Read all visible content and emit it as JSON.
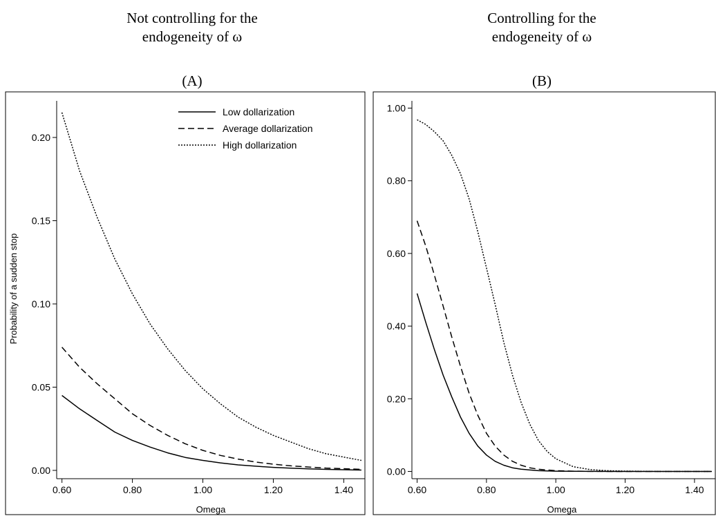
{
  "chart_data": [
    {
      "type": "line",
      "heading": [
        "Not controlling for the",
        "endogeneity of ω"
      ],
      "panel_label": "(A)",
      "xlabel": "Omega",
      "ylabel": "Probability of a sudden stop",
      "xlim": [
        0.585,
        1.46
      ],
      "ylim": [
        -0.005,
        0.222
      ],
      "xticks": [
        0.6,
        0.8,
        1.0,
        1.2,
        1.4
      ],
      "xtick_labels": [
        "0.60",
        "0.80",
        "1.00",
        "1.20",
        "1.40"
      ],
      "yticks": [
        0,
        0.05,
        0.1,
        0.15,
        0.2
      ],
      "ytick_labels": [
        "0.00",
        "0.05",
        "0.10",
        "0.15",
        "0.20"
      ],
      "legend_position": "top-right",
      "series": [
        {
          "name": "Low dollarization",
          "style": "solid",
          "x": [
            0.6,
            0.65,
            0.7,
            0.75,
            0.8,
            0.85,
            0.9,
            0.95,
            1.0,
            1.05,
            1.1,
            1.15,
            1.2,
            1.25,
            1.3,
            1.35,
            1.4,
            1.45
          ],
          "y": [
            0.045,
            0.037,
            0.03,
            0.023,
            0.018,
            0.014,
            0.0105,
            0.0078,
            0.006,
            0.0045,
            0.0033,
            0.0025,
            0.0018,
            0.0013,
            0.0009,
            0.0006,
            0.0004,
            0.0002
          ]
        },
        {
          "name": "Average dollarization",
          "style": "dashed",
          "x": [
            0.6,
            0.65,
            0.7,
            0.75,
            0.8,
            0.85,
            0.9,
            0.95,
            1.0,
            1.05,
            1.1,
            1.15,
            1.2,
            1.25,
            1.3,
            1.35,
            1.4,
            1.45
          ],
          "y": [
            0.074,
            0.062,
            0.052,
            0.043,
            0.034,
            0.027,
            0.021,
            0.016,
            0.012,
            0.009,
            0.0068,
            0.005,
            0.0037,
            0.0027,
            0.002,
            0.0014,
            0.001,
            0.0006
          ]
        },
        {
          "name": "High dollarization",
          "style": "dotted",
          "x": [
            0.6,
            0.65,
            0.7,
            0.75,
            0.8,
            0.85,
            0.9,
            0.95,
            1.0,
            1.05,
            1.1,
            1.15,
            1.2,
            1.25,
            1.3,
            1.35,
            1.4,
            1.45
          ],
          "y": [
            0.215,
            0.18,
            0.152,
            0.127,
            0.106,
            0.088,
            0.073,
            0.06,
            0.049,
            0.04,
            0.032,
            0.026,
            0.021,
            0.017,
            0.013,
            0.01,
            0.008,
            0.006
          ]
        }
      ]
    },
    {
      "type": "line",
      "heading": [
        "Controlling for the",
        "endogeneity of ω"
      ],
      "panel_label": "(B)",
      "xlabel": "Omega",
      "ylabel": "",
      "xlim": [
        0.585,
        1.46
      ],
      "ylim": [
        -0.02,
        1.02
      ],
      "xticks": [
        0.6,
        0.8,
        1.0,
        1.2,
        1.4
      ],
      "xtick_labels": [
        "0.60",
        "0.80",
        "1.00",
        "1.20",
        "1.40"
      ],
      "yticks": [
        0,
        0.2,
        0.4,
        0.6,
        0.8,
        1.0
      ],
      "ytick_labels": [
        "0.00",
        "0.20",
        "0.40",
        "0.60",
        "0.80",
        "1.00"
      ],
      "series": [
        {
          "name": "Low dollarization",
          "style": "solid",
          "x": [
            0.6,
            0.625,
            0.65,
            0.675,
            0.7,
            0.725,
            0.75,
            0.775,
            0.8,
            0.825,
            0.85,
            0.875,
            0.9,
            0.95,
            1.0,
            1.05,
            1.1,
            1.2,
            1.3,
            1.45
          ],
          "y": [
            0.49,
            0.41,
            0.335,
            0.265,
            0.205,
            0.15,
            0.105,
            0.07,
            0.045,
            0.028,
            0.017,
            0.01,
            0.006,
            0.002,
            0.0008,
            0.0003,
            0.0001,
            0,
            0,
            0
          ]
        },
        {
          "name": "Average dollarization",
          "style": "dashed",
          "x": [
            0.6,
            0.625,
            0.65,
            0.675,
            0.7,
            0.725,
            0.75,
            0.775,
            0.8,
            0.825,
            0.85,
            0.875,
            0.9,
            0.925,
            0.95,
            1.0,
            1.05,
            1.1,
            1.2,
            1.3,
            1.45
          ],
          "y": [
            0.69,
            0.62,
            0.54,
            0.455,
            0.37,
            0.29,
            0.215,
            0.155,
            0.105,
            0.07,
            0.045,
            0.028,
            0.017,
            0.01,
            0.006,
            0.002,
            0.0007,
            0.0002,
            0,
            0,
            0
          ]
        },
        {
          "name": "High dollarization",
          "style": "dotted",
          "x": [
            0.6,
            0.625,
            0.65,
            0.675,
            0.7,
            0.725,
            0.75,
            0.775,
            0.8,
            0.825,
            0.85,
            0.875,
            0.9,
            0.925,
            0.95,
            0.975,
            1.0,
            1.05,
            1.1,
            1.15,
            1.2,
            1.3,
            1.45
          ],
          "y": [
            0.968,
            0.955,
            0.935,
            0.91,
            0.87,
            0.82,
            0.75,
            0.66,
            0.56,
            0.46,
            0.355,
            0.265,
            0.19,
            0.13,
            0.085,
            0.055,
            0.035,
            0.013,
            0.005,
            0.002,
            0.001,
            0,
            0
          ]
        }
      ]
    }
  ]
}
